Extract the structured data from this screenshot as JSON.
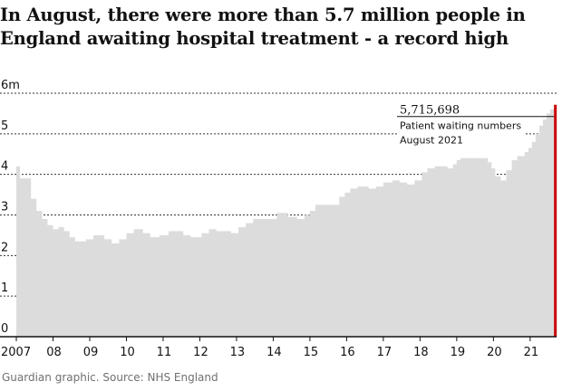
{
  "title": "In August, there were more than 5.7 million people in England awaiting hospital treatment - a record high",
  "footer": "Guardian graphic. Source: NHS England",
  "colors": {
    "bars": "#dcdcdc",
    "highlight": "#c70000",
    "grid": "#333333",
    "axis": "#121212"
  },
  "chart_data": {
    "type": "area",
    "title": "In August, there were more than 5.7 million people in England awaiting hospital treatment - a record high",
    "xlabel": "",
    "ylabel": "",
    "ylim": [
      0,
      6
    ],
    "x_range": [
      2007.0,
      2021.72
    ],
    "yticks": [
      {
        "value": 0,
        "label": "0"
      },
      {
        "value": 1,
        "label": "1"
      },
      {
        "value": 2,
        "label": "2"
      },
      {
        "value": 3,
        "label": "3"
      },
      {
        "value": 4,
        "label": "4"
      },
      {
        "value": 5,
        "label": "5"
      },
      {
        "value": 6,
        "label": "6m"
      }
    ],
    "xticks": [
      {
        "value": 2007.0,
        "label": "2007"
      },
      {
        "value": 2008.0,
        "label": "08"
      },
      {
        "value": 2009.0,
        "label": "09"
      },
      {
        "value": 2010.0,
        "label": "10"
      },
      {
        "value": 2011.0,
        "label": "11"
      },
      {
        "value": 2012.0,
        "label": "12"
      },
      {
        "value": 2013.0,
        "label": "13"
      },
      {
        "value": 2014.0,
        "label": "14"
      },
      {
        "value": 2015.0,
        "label": "15"
      },
      {
        "value": 2016.0,
        "label": "16"
      },
      {
        "value": 2017.0,
        "label": "17"
      },
      {
        "value": 2018.0,
        "label": "18"
      },
      {
        "value": 2019.0,
        "label": "19"
      },
      {
        "value": 2020.0,
        "label": "20"
      },
      {
        "value": 2021.0,
        "label": "21"
      }
    ],
    "series": [
      {
        "name": "Patient waiting numbers",
        "points": [
          [
            2007.0,
            4.2
          ],
          [
            2007.1,
            3.9
          ],
          [
            2007.4,
            3.4
          ],
          [
            2007.55,
            3.1
          ],
          [
            2007.7,
            2.9
          ],
          [
            2007.85,
            2.75
          ],
          [
            2008.0,
            2.65
          ],
          [
            2008.15,
            2.7
          ],
          [
            2008.3,
            2.6
          ],
          [
            2008.45,
            2.45
          ],
          [
            2008.6,
            2.35
          ],
          [
            2008.9,
            2.4
          ],
          [
            2009.1,
            2.5
          ],
          [
            2009.4,
            2.4
          ],
          [
            2009.6,
            2.3
          ],
          [
            2009.8,
            2.4
          ],
          [
            2010.0,
            2.55
          ],
          [
            2010.2,
            2.65
          ],
          [
            2010.45,
            2.55
          ],
          [
            2010.65,
            2.45
          ],
          [
            2010.9,
            2.5
          ],
          [
            2011.15,
            2.6
          ],
          [
            2011.55,
            2.5
          ],
          [
            2011.75,
            2.45
          ],
          [
            2012.05,
            2.55
          ],
          [
            2012.25,
            2.65
          ],
          [
            2012.45,
            2.6
          ],
          [
            2012.85,
            2.55
          ],
          [
            2013.05,
            2.7
          ],
          [
            2013.25,
            2.8
          ],
          [
            2013.45,
            2.9
          ],
          [
            2014.1,
            3.05
          ],
          [
            2014.4,
            2.95
          ],
          [
            2014.65,
            2.9
          ],
          [
            2014.85,
            3.0
          ],
          [
            2015.0,
            3.1
          ],
          [
            2015.15,
            3.25
          ],
          [
            2015.8,
            3.45
          ],
          [
            2015.95,
            3.55
          ],
          [
            2016.1,
            3.65
          ],
          [
            2016.3,
            3.7
          ],
          [
            2016.6,
            3.65
          ],
          [
            2016.8,
            3.7
          ],
          [
            2017.0,
            3.8
          ],
          [
            2017.25,
            3.85
          ],
          [
            2017.45,
            3.8
          ],
          [
            2017.65,
            3.75
          ],
          [
            2017.85,
            3.85
          ],
          [
            2018.05,
            4.05
          ],
          [
            2018.2,
            4.15
          ],
          [
            2018.4,
            4.2
          ],
          [
            2018.75,
            4.15
          ],
          [
            2018.9,
            4.25
          ],
          [
            2019.0,
            4.35
          ],
          [
            2019.1,
            4.4
          ],
          [
            2019.85,
            4.3
          ],
          [
            2019.95,
            4.15
          ],
          [
            2020.05,
            3.95
          ],
          [
            2020.2,
            3.85
          ],
          [
            2020.35,
            4.1
          ],
          [
            2020.5,
            4.35
          ],
          [
            2020.65,
            4.45
          ],
          [
            2020.85,
            4.55
          ],
          [
            2020.95,
            4.65
          ],
          [
            2021.05,
            4.8
          ],
          [
            2021.15,
            5.0
          ],
          [
            2021.25,
            5.2
          ],
          [
            2021.35,
            5.35
          ],
          [
            2021.45,
            5.5
          ],
          [
            2021.55,
            5.6
          ],
          [
            2021.65,
            5.715698
          ]
        ]
      }
    ],
    "highlight": {
      "x": 2021.65,
      "value": 5.715698,
      "color": "#c70000"
    },
    "annotation": {
      "value_label": "5,715,698",
      "line1": "Patient waiting numbers",
      "line2": "August 2021"
    },
    "grid": true,
    "legend": "none"
  }
}
